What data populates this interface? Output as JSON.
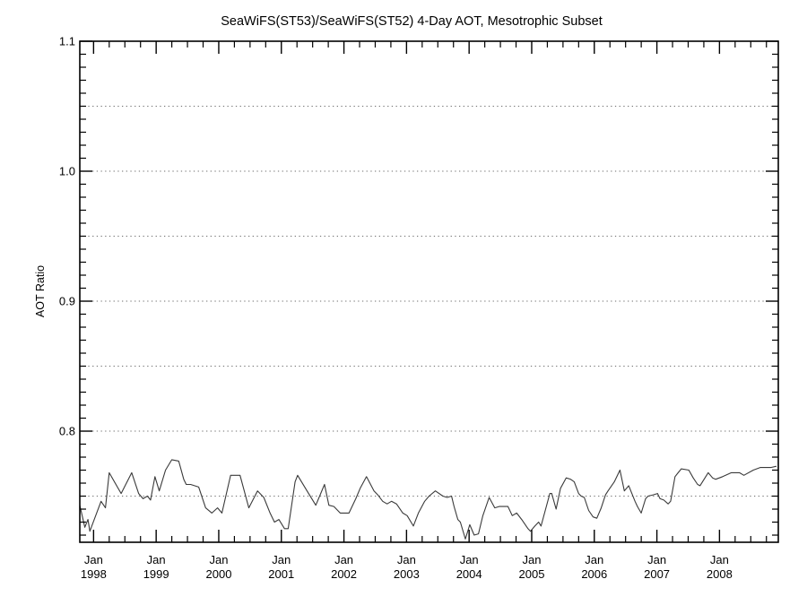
{
  "chart_data": {
    "type": "line",
    "title": "SeaWiFS(ST53)/SeaWiFS(ST52) 4-Day AOT, Mesotrophic Subset",
    "xlabel": "",
    "ylabel": "AOT Ratio",
    "xlim": [
      1997.78,
      2008.94
    ],
    "ylim": [
      0.7145,
      1.1
    ],
    "y_major_ticks": [
      0.8,
      0.9,
      1.0,
      1.1
    ],
    "y_tick_labels": [
      "0.8",
      "0.9",
      "1.0",
      "1.1"
    ],
    "y_minor_step": 0.01,
    "x_major_ticks": [
      {
        "year": 1998,
        "line1": "Jan",
        "line2": "1998"
      },
      {
        "year": 1999,
        "line1": "Jan",
        "line2": "1999"
      },
      {
        "year": 2000,
        "line1": "Jan",
        "line2": "2000"
      },
      {
        "year": 2001,
        "line1": "Jan",
        "line2": "2001"
      },
      {
        "year": 2002,
        "line1": "Jan",
        "line2": "2002"
      },
      {
        "year": 2003,
        "line1": "Jan",
        "line2": "2003"
      },
      {
        "year": 2004,
        "line1": "Jan",
        "line2": "2004"
      },
      {
        "year": 2005,
        "line1": "Jan",
        "line2": "2005"
      },
      {
        "year": 2006,
        "line1": "Jan",
        "line2": "2006"
      },
      {
        "year": 2007,
        "line1": "Jan",
        "line2": "2007"
      },
      {
        "year": 2008,
        "line1": "Jan",
        "line2": "2008"
      }
    ],
    "x_minor_offsets": [
      0.25,
      0.5,
      0.75
    ],
    "gridlines_y": [
      0.75,
      0.8,
      0.85,
      0.9,
      0.95,
      1.0,
      1.05
    ],
    "grid_style": "dotted",
    "legend": "none",
    "colors": {
      "background": "#ffffff",
      "axis": "#000000",
      "grid": "#6e6e6e",
      "line": "#3a3a3a"
    },
    "series": [
      {
        "name": "SeaWiFS(ST53)/SeaWiFS(ST52) AOT ratio",
        "points": [
          [
            1997.78,
            0.743
          ],
          [
            1997.86,
            0.726
          ],
          [
            1997.91,
            0.732
          ],
          [
            1997.94,
            0.723
          ],
          [
            1998.12,
            0.746
          ],
          [
            1998.19,
            0.741
          ],
          [
            1998.25,
            0.768
          ],
          [
            1998.44,
            0.752
          ],
          [
            1998.61,
            0.768
          ],
          [
            1998.72,
            0.752
          ],
          [
            1998.79,
            0.748
          ],
          [
            1998.86,
            0.75
          ],
          [
            1998.91,
            0.747
          ],
          [
            1998.98,
            0.765
          ],
          [
            1999.05,
            0.754
          ],
          [
            1999.15,
            0.77
          ],
          [
            1999.25,
            0.778
          ],
          [
            1999.36,
            0.777
          ],
          [
            1999.44,
            0.763
          ],
          [
            1999.48,
            0.759
          ],
          [
            1999.55,
            0.759
          ],
          [
            1999.68,
            0.757
          ],
          [
            1999.79,
            0.741
          ],
          [
            1999.89,
            0.737
          ],
          [
            1999.98,
            0.741
          ],
          [
            2000.05,
            0.737
          ],
          [
            2000.19,
            0.766
          ],
          [
            2000.34,
            0.766
          ],
          [
            2000.48,
            0.741
          ],
          [
            2000.62,
            0.754
          ],
          [
            2000.72,
            0.749
          ],
          [
            2000.82,
            0.737
          ],
          [
            2000.89,
            0.73
          ],
          [
            2000.96,
            0.732
          ],
          [
            2001.05,
            0.725
          ],
          [
            2001.11,
            0.725
          ],
          [
            2001.22,
            0.761
          ],
          [
            2001.26,
            0.766
          ],
          [
            2001.41,
            0.754
          ],
          [
            2001.55,
            0.743
          ],
          [
            2001.69,
            0.759
          ],
          [
            2001.76,
            0.743
          ],
          [
            2001.84,
            0.742
          ],
          [
            2001.94,
            0.737
          ],
          [
            2002.08,
            0.737
          ],
          [
            2002.19,
            0.748
          ],
          [
            2002.26,
            0.756
          ],
          [
            2002.36,
            0.765
          ],
          [
            2002.48,
            0.754
          ],
          [
            2002.54,
            0.751
          ],
          [
            2002.62,
            0.746
          ],
          [
            2002.69,
            0.744
          ],
          [
            2002.76,
            0.746
          ],
          [
            2002.84,
            0.744
          ],
          [
            2002.94,
            0.737
          ],
          [
            2003.01,
            0.735
          ],
          [
            2003.11,
            0.727
          ],
          [
            2003.19,
            0.737
          ],
          [
            2003.29,
            0.746
          ],
          [
            2003.36,
            0.75
          ],
          [
            2003.46,
            0.754
          ],
          [
            2003.58,
            0.75
          ],
          [
            2003.65,
            0.749
          ],
          [
            2003.72,
            0.75
          ],
          [
            2003.76,
            0.742
          ],
          [
            2003.82,
            0.732
          ],
          [
            2003.86,
            0.73
          ],
          [
            2003.94,
            0.717
          ],
          [
            2004.01,
            0.728
          ],
          [
            2004.08,
            0.72
          ],
          [
            2004.15,
            0.721
          ],
          [
            2004.22,
            0.735
          ],
          [
            2004.32,
            0.749
          ],
          [
            2004.41,
            0.741
          ],
          [
            2004.48,
            0.742
          ],
          [
            2004.62,
            0.742
          ],
          [
            2004.69,
            0.735
          ],
          [
            2004.76,
            0.737
          ],
          [
            2004.84,
            0.732
          ],
          [
            2004.94,
            0.725
          ],
          [
            2004.98,
            0.723
          ],
          [
            2005.05,
            0.727
          ],
          [
            2005.11,
            0.73
          ],
          [
            2005.15,
            0.727
          ],
          [
            2005.29,
            0.752
          ],
          [
            2005.32,
            0.752
          ],
          [
            2005.39,
            0.74
          ],
          [
            2005.46,
            0.756
          ],
          [
            2005.55,
            0.764
          ],
          [
            2005.62,
            0.763
          ],
          [
            2005.68,
            0.761
          ],
          [
            2005.75,
            0.752
          ],
          [
            2005.79,
            0.75
          ],
          [
            2005.84,
            0.749
          ],
          [
            2005.91,
            0.739
          ],
          [
            2005.98,
            0.734
          ],
          [
            2006.04,
            0.733
          ],
          [
            2006.11,
            0.741
          ],
          [
            2006.18,
            0.751
          ],
          [
            2006.22,
            0.754
          ],
          [
            2006.32,
            0.761
          ],
          [
            2006.41,
            0.77
          ],
          [
            2006.48,
            0.754
          ],
          [
            2006.55,
            0.758
          ],
          [
            2006.65,
            0.746
          ],
          [
            2006.69,
            0.742
          ],
          [
            2006.75,
            0.737
          ],
          [
            2006.82,
            0.748
          ],
          [
            2006.86,
            0.75
          ],
          [
            2006.94,
            0.751
          ],
          [
            2007.01,
            0.752
          ],
          [
            2007.05,
            0.748
          ],
          [
            2007.11,
            0.747
          ],
          [
            2007.18,
            0.744
          ],
          [
            2007.22,
            0.746
          ],
          [
            2007.29,
            0.765
          ],
          [
            2007.34,
            0.768
          ],
          [
            2007.39,
            0.771
          ],
          [
            2007.51,
            0.77
          ],
          [
            2007.58,
            0.764
          ],
          [
            2007.65,
            0.759
          ],
          [
            2007.69,
            0.758
          ],
          [
            2007.82,
            0.768
          ],
          [
            2007.89,
            0.764
          ],
          [
            2007.94,
            0.763
          ],
          [
            2008.05,
            0.765
          ],
          [
            2008.19,
            0.768
          ],
          [
            2008.32,
            0.768
          ],
          [
            2008.39,
            0.766
          ],
          [
            2008.54,
            0.77
          ],
          [
            2008.65,
            0.772
          ],
          [
            2008.82,
            0.772
          ],
          [
            2008.91,
            0.773
          ]
        ]
      }
    ]
  }
}
